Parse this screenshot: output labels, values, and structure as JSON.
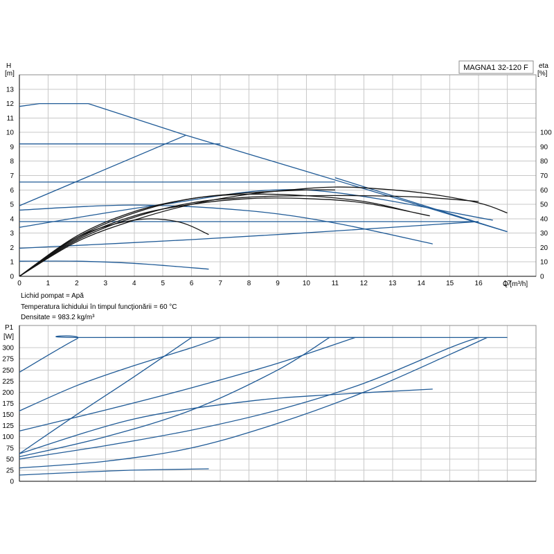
{
  "model_label": "MAGNA1 32-120 F",
  "medium_info": [
    "Lichid pompat = Apă",
    "Temperatura lichidului în timpul funcţionării = 60 °C",
    "Densitate = 983.2 kg/m³"
  ],
  "colors": {
    "curve_blue": "#1f5a96",
    "curve_black": "#141414",
    "grid": "#c8c8c8"
  },
  "chart_data": [
    {
      "type": "line",
      "title": "MAGNA1 32-120 F",
      "xlabel": "Q [m³/h]",
      "ylabel": "H [m]",
      "y2label": "eta [%]",
      "y_axis_title_line1": "H",
      "y_axis_title_line2": "[m]",
      "y2_axis_title_line1": "eta",
      "y2_axis_title_line2": "[%]",
      "xlim": [
        0,
        18
      ],
      "ylim": [
        0,
        14
      ],
      "y2lim": [
        0,
        140
      ],
      "x_ticks": [
        0,
        1,
        2,
        3,
        4,
        5,
        6,
        7,
        8,
        9,
        10,
        11,
        12,
        13,
        14,
        15,
        16,
        17
      ],
      "y_ticks": [
        0,
        1,
        2,
        3,
        4,
        5,
        6,
        7,
        8,
        9,
        10,
        11,
        12,
        13
      ],
      "y2_ticks": [
        0,
        10,
        20,
        30,
        40,
        50,
        60,
        70,
        80,
        90,
        100
      ],
      "grid": true,
      "series": [
        {
          "kind": "head",
          "x": [
            0,
            0.7,
            2.4,
            5.8,
            17
          ],
          "y": [
            11.8,
            12.0,
            12.0,
            9.8,
            3.1
          ]
        },
        {
          "kind": "head",
          "x": [
            0,
            7
          ],
          "y": [
            9.2,
            9.2
          ]
        },
        {
          "kind": "head",
          "x": [
            0,
            5.8
          ],
          "y": [
            4.9,
            9.8
          ]
        },
        {
          "kind": "head",
          "x": [
            0,
            11
          ],
          "y": [
            6.55,
            6.55
          ]
        },
        {
          "kind": "head",
          "x": [
            11,
            17
          ],
          "y": [
            6.85,
            3.1
          ]
        },
        {
          "kind": "head",
          "x": [
            0,
            4,
            8,
            11,
            14.4
          ],
          "y": [
            4.6,
            4.95,
            4.55,
            3.7,
            2.25
          ]
        },
        {
          "kind": "head",
          "x": [
            0,
            16
          ],
          "y": [
            3.8,
            3.8
          ]
        },
        {
          "kind": "head",
          "x": [
            0,
            6,
            11,
            16
          ],
          "y": [
            1.95,
            2.55,
            3.15,
            3.8
          ]
        },
        {
          "kind": "head",
          "x": [
            0,
            2,
            4,
            6.6
          ],
          "y": [
            1.05,
            1.05,
            0.9,
            0.5
          ]
        },
        {
          "kind": "head",
          "x": [
            0,
            5,
            10,
            16.5
          ],
          "y": [
            3.4,
            5.0,
            6.0,
            3.9
          ]
        },
        {
          "kind": "efficiency",
          "x": [
            0,
            2,
            4,
            6,
            8,
            10,
            11,
            12,
            14,
            16,
            17
          ],
          "y": [
            0,
            24,
            39,
            50,
            57,
            61,
            62,
            61.5,
            58,
            51,
            44
          ]
        },
        {
          "kind": "efficiency",
          "x": [
            0,
            2,
            4,
            6,
            8,
            10,
            12,
            14,
            16
          ],
          "y": [
            0,
            25,
            41,
            51,
            55,
            56,
            56,
            55,
            52
          ]
        },
        {
          "kind": "efficiency",
          "x": [
            0,
            2,
            4,
            6,
            8,
            10,
            12,
            14.3
          ],
          "y": [
            0,
            26,
            42,
            50,
            54,
            54,
            51,
            42
          ]
        },
        {
          "kind": "efficiency",
          "x": [
            0,
            2,
            4,
            5.5,
            6.6
          ],
          "y": [
            0,
            27,
            39,
            38,
            29
          ]
        },
        {
          "kind": "efficiency",
          "x": [
            0,
            2,
            4,
            6,
            8,
            10,
            12,
            13.6
          ],
          "y": [
            0,
            27,
            44,
            54,
            57,
            56,
            52,
            45
          ]
        },
        {
          "kind": "efficiency",
          "x": [
            0,
            2,
            4,
            6,
            8,
            10,
            11
          ],
          "y": [
            0,
            28,
            45,
            54,
            58,
            60,
            60
          ]
        }
      ]
    },
    {
      "type": "line",
      "xlabel": "",
      "ylabel": "P1 [W]",
      "y_axis_title_line1": "P1",
      "y_axis_title_line2": "[W]",
      "xlim": [
        0,
        18
      ],
      "ylim": [
        0,
        350
      ],
      "x_ticks": [
        0,
        1,
        2,
        3,
        4,
        5,
        6,
        7,
        8,
        9,
        10,
        11,
        12,
        13,
        14,
        15,
        16,
        17
      ],
      "y_ticks": [
        0,
        25,
        50,
        75,
        100,
        125,
        150,
        175,
        200,
        225,
        250,
        275,
        300
      ],
      "grid": true,
      "series": [
        {
          "kind": "power",
          "x": [
            0,
            2,
            2.4,
            17
          ],
          "y": [
            245,
            320,
            323,
            323
          ]
        },
        {
          "kind": "power",
          "x": [
            0,
            2,
            4,
            6,
            7
          ],
          "y": [
            158,
            215,
            260,
            300,
            323
          ]
        },
        {
          "kind": "power",
          "x": [
            0,
            2,
            4,
            6
          ],
          "y": [
            62,
            150,
            235,
            323
          ]
        },
        {
          "kind": "power",
          "x": [
            0,
            3,
            6,
            9,
            11.7
          ],
          "y": [
            113,
            160,
            210,
            265,
            323
          ]
        },
        {
          "kind": "power",
          "x": [
            0,
            3,
            6,
            9,
            10.8
          ],
          "y": [
            55,
            100,
            160,
            250,
            323
          ]
        },
        {
          "kind": "power",
          "x": [
            0,
            4,
            8,
            11,
            14.4
          ],
          "y": [
            62,
            140,
            180,
            195,
            207
          ]
        },
        {
          "kind": "power",
          "x": [
            0,
            3,
            6,
            9,
            12,
            15,
            16
          ],
          "y": [
            50,
            80,
            115,
            160,
            220,
            300,
            323
          ]
        },
        {
          "kind": "power",
          "x": [
            0,
            3,
            6,
            9,
            12,
            15,
            16.3
          ],
          "y": [
            30,
            45,
            75,
            130,
            200,
            285,
            323
          ]
        },
        {
          "kind": "power",
          "x": [
            0,
            2,
            4,
            6.6
          ],
          "y": [
            14,
            20,
            25,
            28
          ]
        }
      ]
    }
  ]
}
